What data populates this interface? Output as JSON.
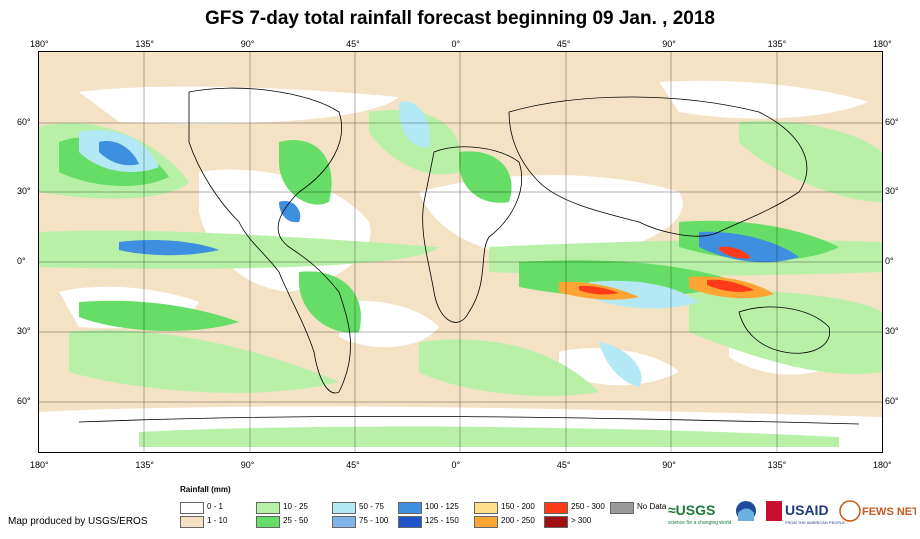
{
  "title": "GFS 7-day total rainfall forecast beginning 09 Jan. , 2018",
  "top_lon_ticks": [
    "180°",
    "135°",
    "90°",
    "45°",
    "0°",
    "45°",
    "90°",
    "135°",
    "180°"
  ],
  "bottom_lon_ticks": [
    "180°",
    "135°",
    "90°",
    "45°",
    "0°",
    "45°",
    "90°",
    "135°",
    "180°"
  ],
  "lat_ticks": [
    "60°",
    "30°",
    "0°",
    "30°",
    "60°"
  ],
  "legend": {
    "title": "Rainfall (mm)",
    "items": [
      {
        "label": "0 - 1",
        "color": "#ffffff"
      },
      {
        "label": "1 - 10",
        "color": "#f4e2c4"
      },
      {
        "label": "10 - 25",
        "color": "#b8f0a8"
      },
      {
        "label": "25 - 50",
        "color": "#66dd66"
      },
      {
        "label": "50 - 75",
        "color": "#b3e8f5"
      },
      {
        "label": "75 - 100",
        "color": "#7fb3ea"
      },
      {
        "label": "100 - 125",
        "color": "#3f8fe0"
      },
      {
        "label": "125 - 150",
        "color": "#1f55c8"
      },
      {
        "label": "150 - 200",
        "color": "#ffe08a"
      },
      {
        "label": "200 - 250",
        "color": "#ffa533"
      },
      {
        "label": "250 - 300",
        "color": "#ff3b1a"
      },
      {
        "label": "> 300",
        "color": "#a01010"
      },
      {
        "label": "No Data",
        "color": "#999999"
      }
    ]
  },
  "credit": "Map produced by USGS/EROS",
  "logos": {
    "usgs": "≈USGS",
    "usgs_tagline": "science for a changing world",
    "usaid": "USAID",
    "usaid_tagline": "FROM THE AMERICAN PEOPLE",
    "fews": "FEWS NET"
  }
}
